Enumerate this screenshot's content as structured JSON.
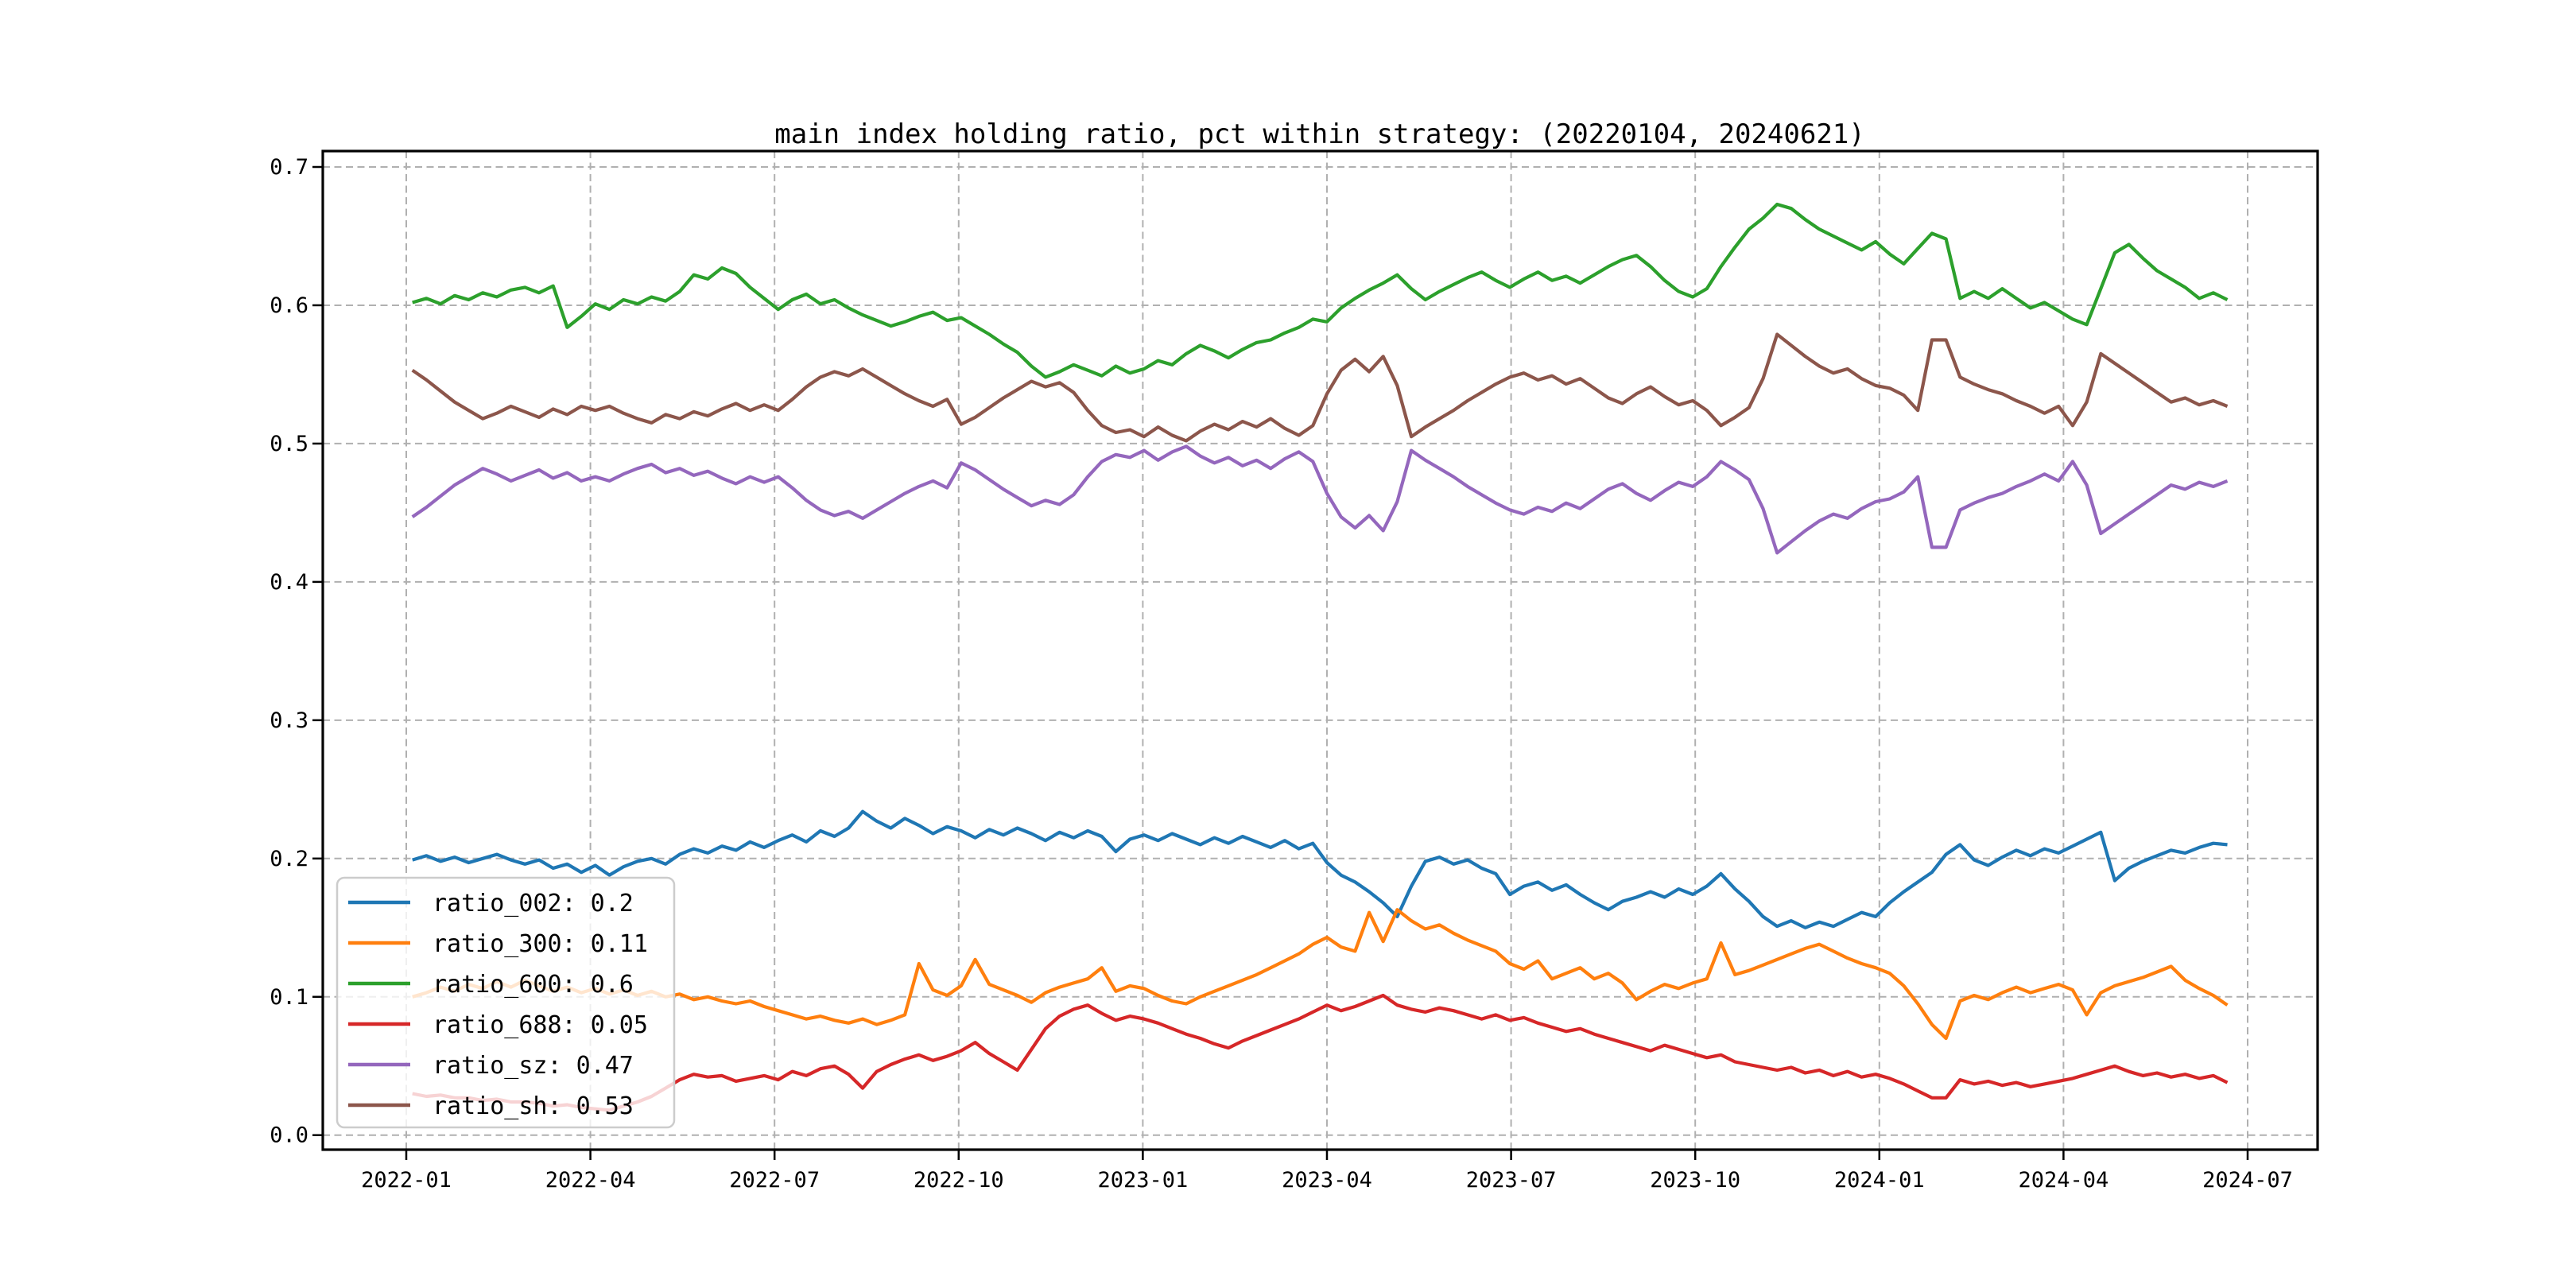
{
  "figure": {
    "background": "#ffffff",
    "plot_border_color": "#000000",
    "grid_color": "#b0b0b0",
    "grid_style": "dashed",
    "legend_border_color": "#cccccc",
    "legend_background": "rgba(255,255,255,0.8)"
  },
  "chart_data": {
    "type": "line",
    "title": "main index holding ratio, pct within strategy: (20220104, 20240621)",
    "xlabel": "",
    "ylabel": "",
    "x_start_date": "2022-01-04",
    "x_end_date": "2024-06-21",
    "x_unit": "months since 2022-01-01, points evenly spaced (weekly)",
    "x_start_month": 0.1,
    "x_end_month": 29.67,
    "xlim_months": [
      -1.36,
      31.14
    ],
    "ylim": [
      -0.0105,
      0.7115
    ],
    "grid": "dashed both axes",
    "legend_position": "lower left",
    "x_ticks": {
      "months": [
        0,
        3,
        6,
        9,
        12,
        15,
        18,
        21,
        24,
        27,
        30
      ],
      "labels": [
        "2022-01",
        "2022-04",
        "2022-07",
        "2022-10",
        "2023-01",
        "2023-04",
        "2023-07",
        "2023-10",
        "2024-01",
        "2024-04",
        "2024-07"
      ]
    },
    "y_ticks": {
      "values": [
        0.0,
        0.1,
        0.2,
        0.3,
        0.4,
        0.5,
        0.6,
        0.7
      ],
      "labels": [
        "0.0",
        "0.1",
        "0.2",
        "0.3",
        "0.4",
        "0.5",
        "0.6",
        "0.7"
      ]
    },
    "series": [
      {
        "name": "ratio_002",
        "legend_label": "ratio_002: 0.2",
        "color": "#1f77b4",
        "values": [
          0.199,
          0.202,
          0.198,
          0.201,
          0.197,
          0.2,
          0.203,
          0.199,
          0.196,
          0.199,
          0.193,
          0.196,
          0.19,
          0.195,
          0.188,
          0.194,
          0.198,
          0.2,
          0.196,
          0.203,
          0.207,
          0.204,
          0.209,
          0.206,
          0.212,
          0.208,
          0.213,
          0.217,
          0.212,
          0.22,
          0.216,
          0.222,
          0.234,
          0.227,
          0.222,
          0.229,
          0.224,
          0.218,
          0.223,
          0.22,
          0.215,
          0.221,
          0.217,
          0.222,
          0.218,
          0.213,
          0.219,
          0.215,
          0.22,
          0.216,
          0.205,
          0.214,
          0.217,
          0.213,
          0.218,
          0.214,
          0.21,
          0.215,
          0.211,
          0.216,
          0.212,
          0.208,
          0.213,
          0.207,
          0.211,
          0.197,
          0.188,
          0.183,
          0.176,
          0.168,
          0.158,
          0.18,
          0.198,
          0.201,
          0.196,
          0.199,
          0.193,
          0.189,
          0.174,
          0.18,
          0.183,
          0.177,
          0.181,
          0.174,
          0.168,
          0.163,
          0.169,
          0.172,
          0.176,
          0.172,
          0.178,
          0.174,
          0.18,
          0.189,
          0.178,
          0.169,
          0.158,
          0.151,
          0.155,
          0.15,
          0.154,
          0.151,
          0.156,
          0.161,
          0.158,
          0.168,
          0.176,
          0.183,
          0.19,
          0.203,
          0.21,
          0.199,
          0.195,
          0.201,
          0.206,
          0.202,
          0.207,
          0.204,
          0.209,
          0.214,
          0.219,
          0.184,
          0.193,
          0.198,
          0.202,
          0.206,
          0.204,
          0.208,
          0.211,
          0.21
        ]
      },
      {
        "name": "ratio_300",
        "legend_label": "ratio_300: 0.11",
        "color": "#ff7f0e",
        "values": [
          0.1,
          0.103,
          0.107,
          0.104,
          0.109,
          0.106,
          0.111,
          0.107,
          0.112,
          0.108,
          0.104,
          0.107,
          0.103,
          0.106,
          0.102,
          0.105,
          0.101,
          0.104,
          0.1,
          0.102,
          0.098,
          0.1,
          0.097,
          0.095,
          0.097,
          0.093,
          0.09,
          0.087,
          0.084,
          0.086,
          0.083,
          0.081,
          0.084,
          0.08,
          0.083,
          0.087,
          0.124,
          0.105,
          0.101,
          0.108,
          0.127,
          0.109,
          0.105,
          0.101,
          0.096,
          0.103,
          0.107,
          0.11,
          0.113,
          0.121,
          0.104,
          0.108,
          0.106,
          0.101,
          0.097,
          0.095,
          0.1,
          0.104,
          0.108,
          0.112,
          0.116,
          0.121,
          0.126,
          0.131,
          0.138,
          0.143,
          0.136,
          0.133,
          0.161,
          0.14,
          0.163,
          0.155,
          0.149,
          0.152,
          0.146,
          0.141,
          0.137,
          0.133,
          0.124,
          0.12,
          0.126,
          0.113,
          0.117,
          0.121,
          0.113,
          0.117,
          0.11,
          0.098,
          0.104,
          0.109,
          0.106,
          0.11,
          0.113,
          0.139,
          0.116,
          0.119,
          0.123,
          0.127,
          0.131,
          0.135,
          0.138,
          0.133,
          0.128,
          0.124,
          0.121,
          0.117,
          0.108,
          0.095,
          0.08,
          0.07,
          0.097,
          0.101,
          0.098,
          0.103,
          0.107,
          0.103,
          0.106,
          0.109,
          0.105,
          0.087,
          0.103,
          0.108,
          0.111,
          0.114,
          0.118,
          0.122,
          0.112,
          0.106,
          0.101,
          0.094
        ]
      },
      {
        "name": "ratio_600",
        "legend_label": "ratio_600: 0.6",
        "color": "#2ca02c",
        "values": [
          0.602,
          0.605,
          0.601,
          0.607,
          0.604,
          0.609,
          0.606,
          0.611,
          0.613,
          0.609,
          0.614,
          0.584,
          0.592,
          0.601,
          0.597,
          0.604,
          0.601,
          0.606,
          0.603,
          0.61,
          0.622,
          0.619,
          0.627,
          0.623,
          0.613,
          0.605,
          0.597,
          0.604,
          0.608,
          0.601,
          0.604,
          0.598,
          0.593,
          0.589,
          0.585,
          0.588,
          0.592,
          0.595,
          0.589,
          0.591,
          0.585,
          0.579,
          0.572,
          0.566,
          0.556,
          0.548,
          0.552,
          0.557,
          0.553,
          0.549,
          0.556,
          0.551,
          0.554,
          0.56,
          0.557,
          0.565,
          0.571,
          0.567,
          0.562,
          0.568,
          0.573,
          0.575,
          0.58,
          0.584,
          0.59,
          0.588,
          0.598,
          0.605,
          0.611,
          0.616,
          0.622,
          0.612,
          0.604,
          0.61,
          0.615,
          0.62,
          0.624,
          0.618,
          0.613,
          0.619,
          0.624,
          0.618,
          0.621,
          0.616,
          0.622,
          0.628,
          0.633,
          0.636,
          0.628,
          0.618,
          0.61,
          0.606,
          0.612,
          0.628,
          0.642,
          0.655,
          0.663,
          0.673,
          0.67,
          0.662,
          0.655,
          0.65,
          0.645,
          0.64,
          0.646,
          0.637,
          0.63,
          0.641,
          0.652,
          0.648,
          0.605,
          0.61,
          0.605,
          0.612,
          0.605,
          0.598,
          0.602,
          0.596,
          0.59,
          0.586,
          0.612,
          0.638,
          0.644,
          0.634,
          0.625,
          0.619,
          0.613,
          0.605,
          0.609,
          0.604
        ]
      },
      {
        "name": "ratio_688",
        "legend_label": "ratio_688: 0.05",
        "color": "#d62728",
        "values": [
          0.03,
          0.028,
          0.029,
          0.027,
          0.027,
          0.025,
          0.026,
          0.024,
          0.024,
          0.023,
          0.021,
          0.022,
          0.02,
          0.019,
          0.018,
          0.021,
          0.024,
          0.028,
          0.034,
          0.04,
          0.044,
          0.042,
          0.043,
          0.039,
          0.041,
          0.043,
          0.04,
          0.046,
          0.043,
          0.048,
          0.05,
          0.044,
          0.034,
          0.046,
          0.051,
          0.055,
          0.058,
          0.054,
          0.057,
          0.061,
          0.067,
          0.059,
          0.053,
          0.047,
          0.062,
          0.077,
          0.086,
          0.091,
          0.094,
          0.088,
          0.083,
          0.086,
          0.084,
          0.081,
          0.077,
          0.073,
          0.07,
          0.066,
          0.063,
          0.068,
          0.072,
          0.076,
          0.08,
          0.084,
          0.089,
          0.094,
          0.09,
          0.093,
          0.097,
          0.101,
          0.094,
          0.091,
          0.089,
          0.092,
          0.09,
          0.087,
          0.084,
          0.087,
          0.083,
          0.085,
          0.081,
          0.078,
          0.075,
          0.077,
          0.073,
          0.07,
          0.067,
          0.064,
          0.061,
          0.065,
          0.062,
          0.059,
          0.056,
          0.058,
          0.053,
          0.051,
          0.049,
          0.047,
          0.049,
          0.045,
          0.047,
          0.043,
          0.046,
          0.042,
          0.044,
          0.041,
          0.037,
          0.032,
          0.027,
          0.027,
          0.04,
          0.037,
          0.039,
          0.036,
          0.038,
          0.035,
          0.037,
          0.039,
          0.041,
          0.044,
          0.047,
          0.05,
          0.046,
          0.043,
          0.045,
          0.042,
          0.044,
          0.041,
          0.043,
          0.038
        ]
      },
      {
        "name": "ratio_sz",
        "legend_label": "ratio_sz: 0.47",
        "color": "#9467bd",
        "values": [
          0.447,
          0.454,
          0.462,
          0.47,
          0.476,
          0.482,
          0.478,
          0.473,
          0.477,
          0.481,
          0.475,
          0.479,
          0.473,
          0.476,
          0.473,
          0.478,
          0.482,
          0.485,
          0.479,
          0.482,
          0.477,
          0.48,
          0.475,
          0.471,
          0.476,
          0.472,
          0.476,
          0.468,
          0.459,
          0.452,
          0.448,
          0.451,
          0.446,
          0.452,
          0.458,
          0.464,
          0.469,
          0.473,
          0.468,
          0.486,
          0.481,
          0.474,
          0.467,
          0.461,
          0.455,
          0.459,
          0.456,
          0.463,
          0.476,
          0.487,
          0.492,
          0.49,
          0.495,
          0.488,
          0.494,
          0.498,
          0.491,
          0.486,
          0.49,
          0.484,
          0.488,
          0.482,
          0.489,
          0.494,
          0.487,
          0.464,
          0.447,
          0.439,
          0.448,
          0.437,
          0.458,
          0.495,
          0.488,
          0.482,
          0.476,
          0.469,
          0.463,
          0.457,
          0.452,
          0.449,
          0.454,
          0.451,
          0.457,
          0.453,
          0.46,
          0.467,
          0.471,
          0.464,
          0.459,
          0.466,
          0.472,
          0.469,
          0.476,
          0.487,
          0.481,
          0.474,
          0.453,
          0.421,
          0.429,
          0.437,
          0.444,
          0.449,
          0.446,
          0.453,
          0.458,
          0.46,
          0.465,
          0.476,
          0.425,
          0.425,
          0.452,
          0.457,
          0.461,
          0.464,
          0.469,
          0.473,
          0.478,
          0.473,
          0.487,
          0.47,
          0.435,
          0.442,
          0.449,
          0.456,
          0.463,
          0.47,
          0.467,
          0.472,
          0.469,
          0.473
        ]
      },
      {
        "name": "ratio_sh",
        "legend_label": "ratio_sh: 0.53",
        "color": "#8c564b",
        "values": [
          0.553,
          0.546,
          0.538,
          0.53,
          0.524,
          0.518,
          0.522,
          0.527,
          0.523,
          0.519,
          0.525,
          0.521,
          0.527,
          0.524,
          0.527,
          0.522,
          0.518,
          0.515,
          0.521,
          0.518,
          0.523,
          0.52,
          0.525,
          0.529,
          0.524,
          0.528,
          0.524,
          0.532,
          0.541,
          0.548,
          0.552,
          0.549,
          0.554,
          0.548,
          0.542,
          0.536,
          0.531,
          0.527,
          0.532,
          0.514,
          0.519,
          0.526,
          0.533,
          0.539,
          0.545,
          0.541,
          0.544,
          0.537,
          0.524,
          0.513,
          0.508,
          0.51,
          0.505,
          0.512,
          0.506,
          0.502,
          0.509,
          0.514,
          0.51,
          0.516,
          0.512,
          0.518,
          0.511,
          0.506,
          0.513,
          0.536,
          0.553,
          0.561,
          0.552,
          0.563,
          0.542,
          0.505,
          0.512,
          0.518,
          0.524,
          0.531,
          0.537,
          0.543,
          0.548,
          0.551,
          0.546,
          0.549,
          0.543,
          0.547,
          0.54,
          0.533,
          0.529,
          0.536,
          0.541,
          0.534,
          0.528,
          0.531,
          0.524,
          0.513,
          0.519,
          0.526,
          0.547,
          0.579,
          0.571,
          0.563,
          0.556,
          0.551,
          0.554,
          0.547,
          0.542,
          0.54,
          0.535,
          0.524,
          0.575,
          0.575,
          0.548,
          0.543,
          0.539,
          0.536,
          0.531,
          0.527,
          0.522,
          0.527,
          0.513,
          0.53,
          0.565,
          0.558,
          0.551,
          0.544,
          0.537,
          0.53,
          0.533,
          0.528,
          0.531,
          0.527
        ]
      }
    ]
  }
}
